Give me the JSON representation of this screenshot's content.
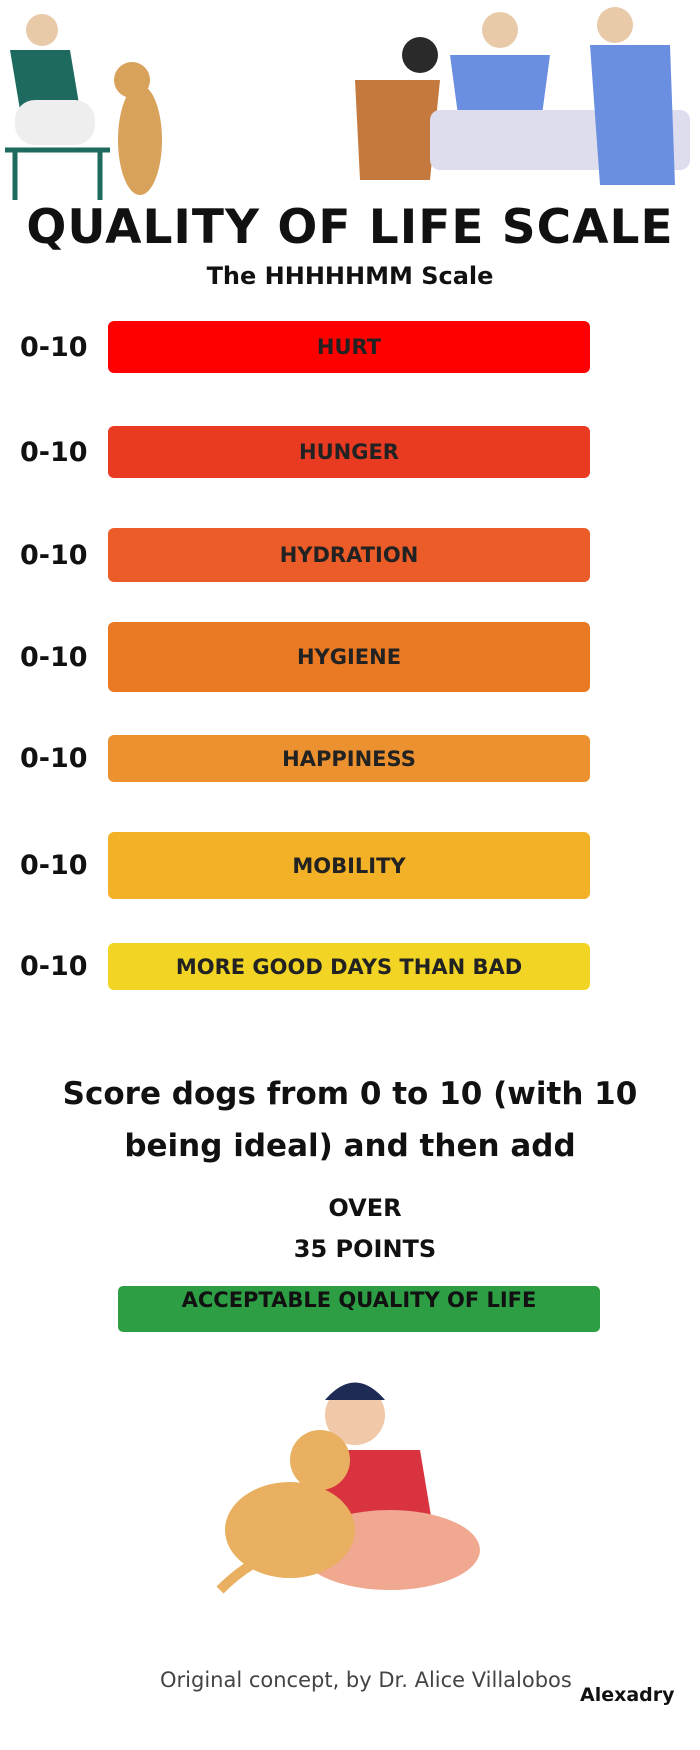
{
  "title": "QUALITY OF LIFE SCALE",
  "subtitle": "The HHHHHMM Scale",
  "scale_items": [
    {
      "range": "0-10",
      "label": "HURT"
    },
    {
      "range": "0-10",
      "label": "HUNGER"
    },
    {
      "range": "0-10",
      "label": "HYDRATION"
    },
    {
      "range": "0-10",
      "label": "HYGIENE"
    },
    {
      "range": "0-10",
      "label": "HAPPINESS"
    },
    {
      "range": "0-10",
      "label": "MOBILITY"
    },
    {
      "range": "0-10",
      "label": "MORE GOOD DAYS THAN BAD"
    }
  ],
  "instruction": "Score dogs from 0 to 10 (with 10 being ideal) and then add",
  "threshold": {
    "line1": "OVER",
    "line2": "35 POINTS",
    "result": "ACCEPTABLE QUALITY OF LIFE"
  },
  "credit": "Original concept, by Dr. Alice Villalobos",
  "brand": "Alexadry"
}
